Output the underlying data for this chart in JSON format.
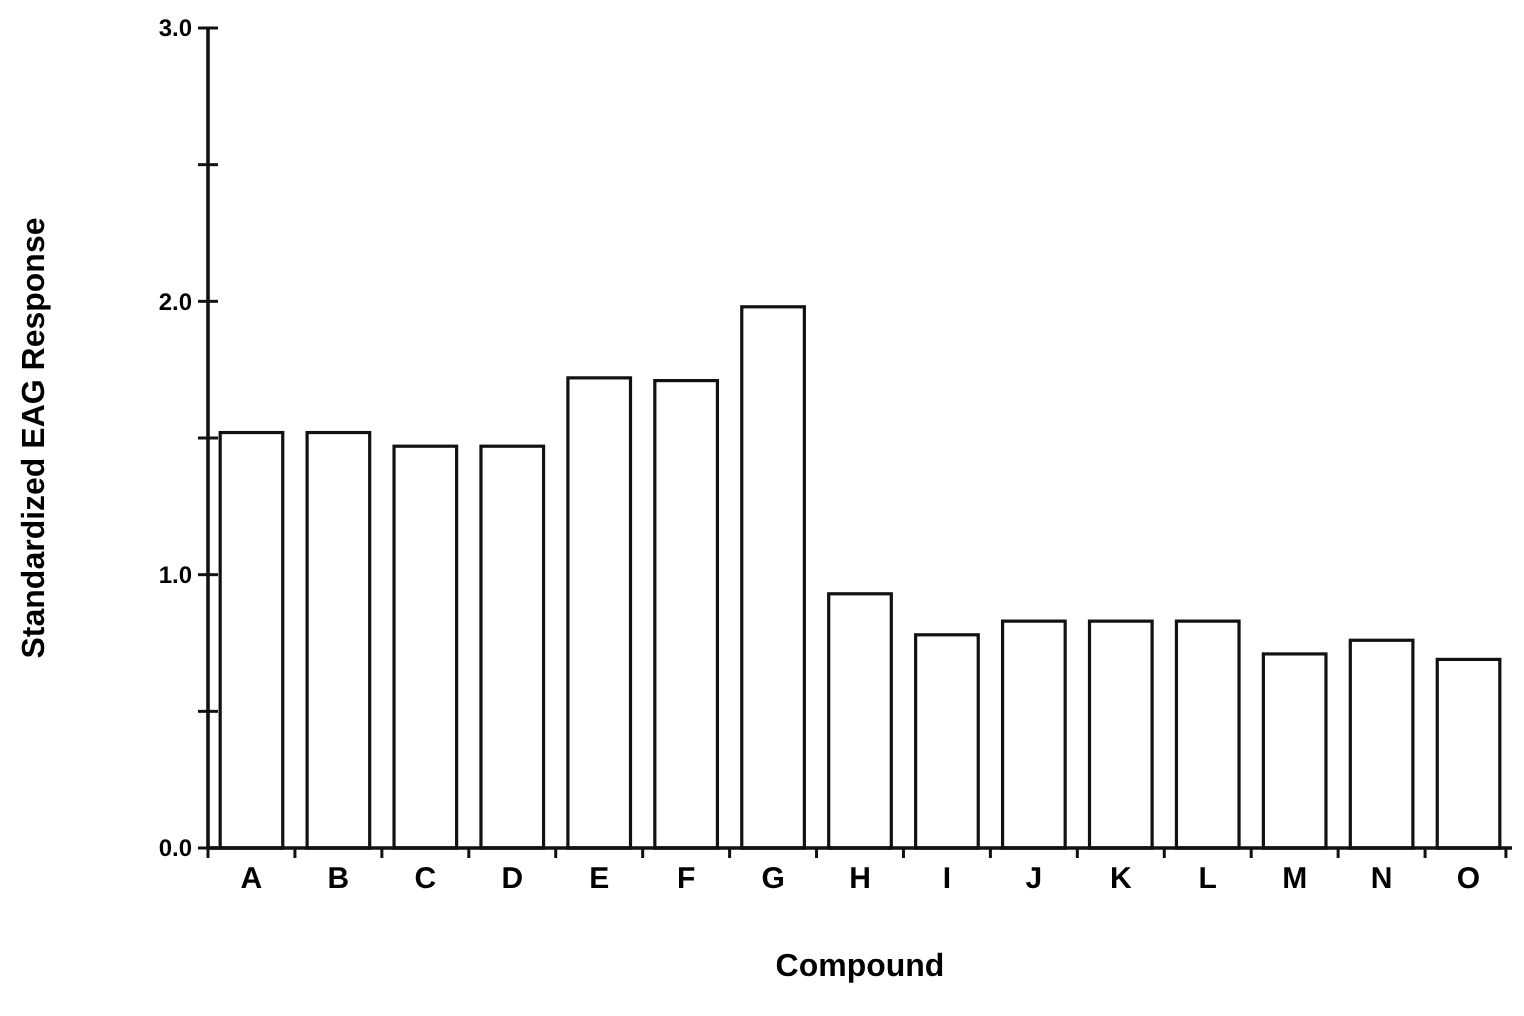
{
  "chart_data": {
    "type": "bar",
    "xlabel": "Compound",
    "ylabel": "Standardized EAG Response",
    "categories": [
      "A",
      "B",
      "C",
      "D",
      "E",
      "F",
      "G",
      "H",
      "I",
      "J",
      "K",
      "L",
      "M",
      "N",
      "O"
    ],
    "values": [
      1.52,
      1.52,
      1.47,
      1.47,
      1.72,
      1.71,
      1.98,
      0.93,
      0.78,
      0.83,
      0.83,
      0.83,
      0.71,
      0.76,
      0.69
    ],
    "color": "#ffffff",
    "ylim": [
      0,
      3
    ],
    "yticks": [
      {
        "value": 0,
        "label": "0.0"
      },
      {
        "value": 0.5,
        "label": null
      },
      {
        "value": 1,
        "label": "1.0"
      },
      {
        "value": 1.5,
        "label": null
      },
      {
        "value": 2,
        "label": "2.0"
      },
      {
        "value": 2.5,
        "label": null
      },
      {
        "value": 3,
        "label": "3.0"
      }
    ],
    "grid": false
  }
}
